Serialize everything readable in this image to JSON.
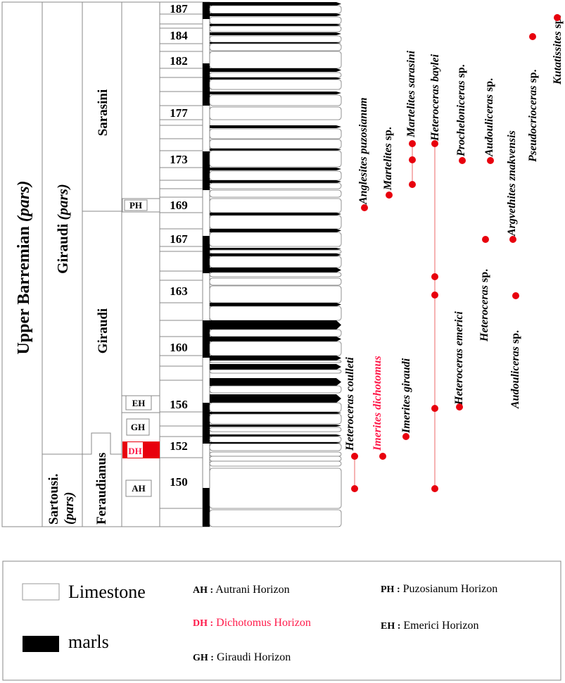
{
  "columns": {
    "stage": "Upper Barremian",
    "stage_suffix": "(pars)",
    "zone_giraudi": "Giraudi",
    "zone_giraudi_suffix": "(pars)",
    "zone_sartousi": "Sartousi.",
    "zone_sartousi_suffix": "(pars)",
    "subzone_sarasini": "Sarasini",
    "subzone_giraudi": "Giraudi",
    "subzone_feraudianus": "Feraudianus"
  },
  "horizons": {
    "PH": "PH",
    "EH": "EH",
    "GH": "GH",
    "DH": "DH",
    "AH": "AH"
  },
  "beds": [
    "187",
    "184",
    "182",
    "177",
    "173",
    "169",
    "167",
    "163",
    "160",
    "156",
    "152",
    "150"
  ],
  "taxa": [
    {
      "name": "Heteroceras coulleti",
      "suffix": "",
      "color": "#000000"
    },
    {
      "name": "Imerites dichotomus",
      "suffix": "",
      "color": "#ff1a4a"
    },
    {
      "name": "Imerites giraudi",
      "suffix": "",
      "color": "#000000"
    },
    {
      "name": "Heteroceras baylei",
      "suffix": "",
      "color": "#000000"
    },
    {
      "name": "Heteroceras emerici",
      "suffix": "",
      "color": "#000000"
    },
    {
      "name": "Anglesites puzosianum",
      "suffix": "",
      "color": "#000000"
    },
    {
      "name": "Martelites",
      "suffix": "sp.",
      "color": "#000000"
    },
    {
      "name": "Martelites sarasini",
      "suffix": "",
      "color": "#000000"
    },
    {
      "name": "Procheloniceras",
      "suffix": "sp.",
      "color": "#000000"
    },
    {
      "name": "Audouliceras",
      "suffix": "sp.",
      "color": "#000000"
    },
    {
      "name": "Heteroceras",
      "suffix": "sp.",
      "color": "#000000"
    },
    {
      "name": "Argvethites znakvensis",
      "suffix": "",
      "color": "#000000"
    },
    {
      "name": "Audouliceras",
      "suffix": "sp.",
      "color": "#000000"
    },
    {
      "name": "Pseudocrioceras",
      "suffix": "sp.",
      "color": "#000000"
    },
    {
      "name": "Kutatissites",
      "suffix": "sp.",
      "color": "#000000"
    }
  ],
  "legend": {
    "limestone": "Limestone",
    "marls": "marls",
    "items": [
      {
        "code": "AH :",
        "label": "Autrani Horizon"
      },
      {
        "code": "DH :",
        "label": "Dichotomus Horizon"
      },
      {
        "code": "GH :",
        "label": "Giraudi Horizon"
      },
      {
        "code": "PH :",
        "label": "Puzosianum Horizon"
      },
      {
        "code": "EH :",
        "label": "Emerici Horizon"
      }
    ]
  },
  "colors": {
    "accent_red": "#e8000d",
    "range_line": "#f08080",
    "dichotomus_red": "#ff1a4a"
  }
}
